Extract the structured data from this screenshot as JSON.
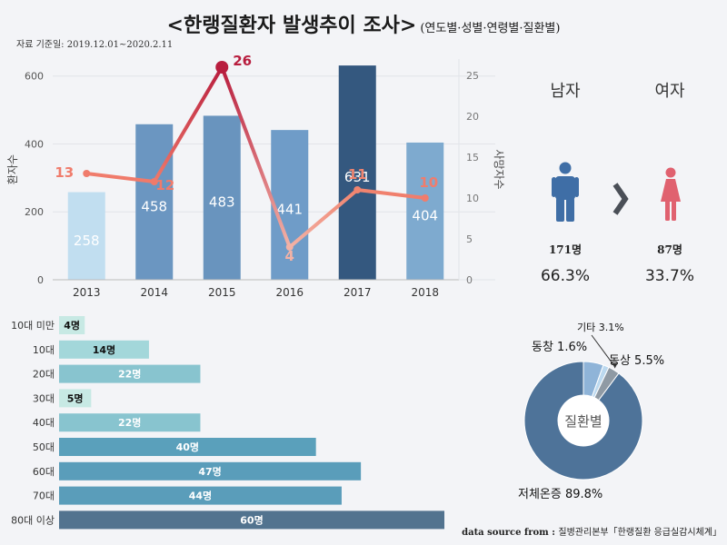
{
  "header": {
    "title": "<한랭질환자 발생추이 조사>",
    "subtitle": "(연도별·성별·연령별·질환별)",
    "period": "자료 기준일:  2019.12.01~2020.2.11"
  },
  "chart_data": [
    {
      "type": "bar",
      "categories": [
        "2013",
        "2014",
        "2015",
        "2016",
        "2017",
        "2018"
      ],
      "series": [
        {
          "name": "환자수",
          "values": [
            258,
            458,
            483,
            441,
            631,
            404
          ]
        },
        {
          "name": "사망자수",
          "values": [
            13,
            12,
            26,
            4,
            11,
            10
          ],
          "type": "line"
        }
      ],
      "ylabel": "환자수",
      "y2label": "사망자수",
      "ylim": [
        0,
        650
      ],
      "y2lim": [
        0,
        27
      ],
      "yticks": [
        0,
        200,
        400,
        600
      ],
      "y2ticks": [
        0,
        5,
        10,
        15,
        20,
        25
      ],
      "bar_colors": [
        "#c1def0",
        "#6b96c1",
        "#6994be",
        "#6f9cc8",
        "#34587f",
        "#7eaacf"
      ],
      "line_colors": [
        "#f07c6c",
        "#f07a6a",
        "#b81d3e",
        "#f3b2a6",
        "#f0846f",
        "#f07c6c"
      ]
    },
    {
      "type": "bar",
      "orientation": "horizontal",
      "categories": [
        "10대 미만",
        "10대",
        "20대",
        "30대",
        "40대",
        "50대",
        "60대",
        "70대",
        "80대 이상"
      ],
      "values": [
        4,
        14,
        22,
        5,
        22,
        40,
        47,
        44,
        60
      ],
      "value_labels": [
        "4명",
        "14명",
        "22명",
        "5명",
        "22명",
        "40명",
        "47명",
        "44명",
        "60명"
      ],
      "colors": [
        "#c7e9e4",
        "#a3d7da",
        "#88c4cf",
        "#c7e9e4",
        "#88c4cf",
        "#5aa0bb",
        "#5a9dba",
        "#5a9dba",
        "#52738f"
      ]
    },
    {
      "type": "pie",
      "center_label": "질환별",
      "labels": [
        "저체온증",
        "동상",
        "동창",
        "기타"
      ],
      "values": [
        89.8,
        5.5,
        1.6,
        3.1
      ],
      "display_labels": [
        "저체온증  89.8%",
        "동상  5.5%",
        "동창  1.6%",
        "기타 3.1%"
      ],
      "colors": [
        "#4e7399",
        "#8fb4d8",
        "#bcd9ef",
        "#8f9aa4"
      ]
    }
  ],
  "gender": {
    "male": {
      "label": "남자",
      "count": "171명",
      "percent": "66.3%",
      "color": "#3f6ea6"
    },
    "female": {
      "label": "여자",
      "count": "87명",
      "percent": "33.7%",
      "color": "#e0616f"
    }
  },
  "source": {
    "prefix": "data source from : ",
    "text": "질병관리본부「한랭질환 응급실감시체계」"
  }
}
